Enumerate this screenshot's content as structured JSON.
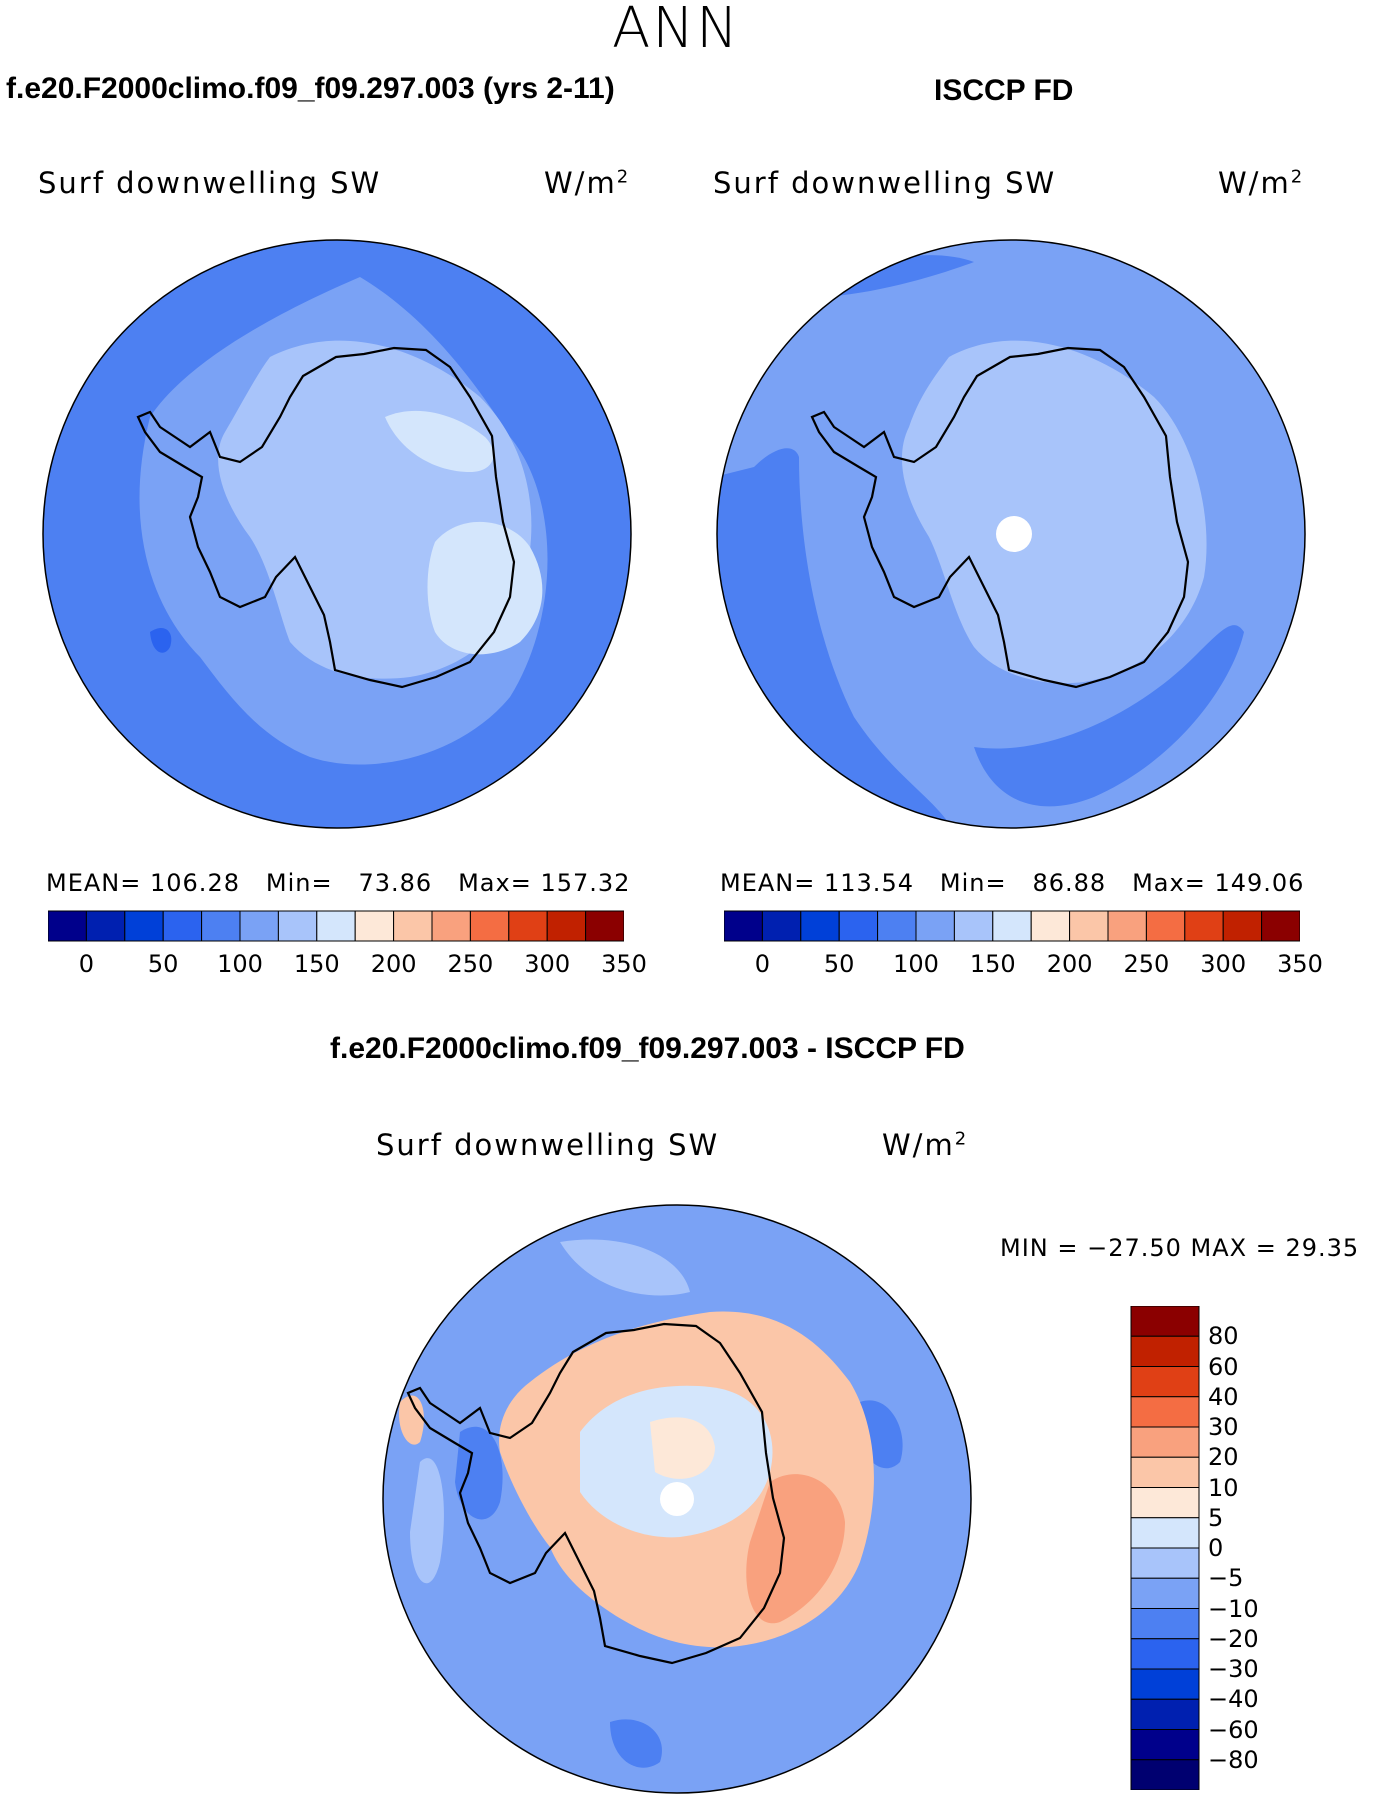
{
  "figure": {
    "season": "ANN"
  },
  "panels": [
    {
      "id": "model",
      "case_title": "f.e20.F2000climo.f09_f09.297.003 (yrs 2-11)",
      "variable": "Surf downwelling SW",
      "units_base": "W/m",
      "units_sup": "2",
      "stats": {
        "mean_label": "MEAN=",
        "mean": "106.28",
        "min_label": "Min=",
        "min": "73.86",
        "max_label": "Max=",
        "max": "157.32"
      }
    },
    {
      "id": "obs",
      "case_title": "ISCCP FD",
      "variable": "Surf downwelling SW",
      "units_base": "W/m",
      "units_sup": "2",
      "stats": {
        "mean_label": "MEAN=",
        "mean": "113.54",
        "min_label": "Min=",
        "min": "86.88",
        "max_label": "Max=",
        "max": "149.06"
      }
    },
    {
      "id": "diff",
      "case_title": "f.e20.F2000climo.f09_f09.297.003 - ISCCP FD",
      "variable": "Surf downwelling SW",
      "units_base": "W/m",
      "units_sup": "2",
      "stats": {
        "text": "MIN = −27.50 MAX =   29.35"
      }
    }
  ],
  "colorbars": {
    "absolute": {
      "colors": [
        "#00008b",
        "#0020b0",
        "#0040d8",
        "#2b63ef",
        "#4d80f2",
        "#7aa2f5",
        "#a8c4fa",
        "#d4e6fc",
        "#fde8d8",
        "#fbc6a8",
        "#f9a17e",
        "#f46d43",
        "#e04015",
        "#c12100",
        "#8b0000"
      ],
      "tick_labels": [
        "0",
        "50",
        "100",
        "150",
        "200",
        "250",
        "300",
        "350"
      ]
    },
    "difference": {
      "colors": [
        "#00008b",
        "#0020b0",
        "#0040d8",
        "#2b63ef",
        "#4d80f2",
        "#7aa2f5",
        "#a8c4fa",
        "#d4e6fc",
        "#fde8d8",
        "#fbc6a8",
        "#f9a17e",
        "#f46d43",
        "#e04015",
        "#c12100",
        "#8b0000"
      ],
      "tick_labels": [
        "−80",
        "−60",
        "−40",
        "−30",
        "−20",
        "−10",
        "−5",
        "0",
        "5",
        "10",
        "20",
        "30",
        "40",
        "60",
        "80"
      ]
    }
  },
  "map_colors": {
    "ocean_100_150": "#4d80f2",
    "ocean_150_200_light": "#7aa2f5",
    "land_200_250": "#a8c4fa",
    "land_250_300": "#d4e6fc",
    "diff_neg_20_10": "#7aa2f5",
    "diff_neg_10_5": "#a8c4fa",
    "diff_neg_5_0": "#d4e6fc",
    "diff_0_5": "#fde8d8",
    "diff_5_10": "#fbc6a8",
    "diff_10_20": "#f9a17e",
    "missing": "#ffffff",
    "coastline": "#000000"
  }
}
